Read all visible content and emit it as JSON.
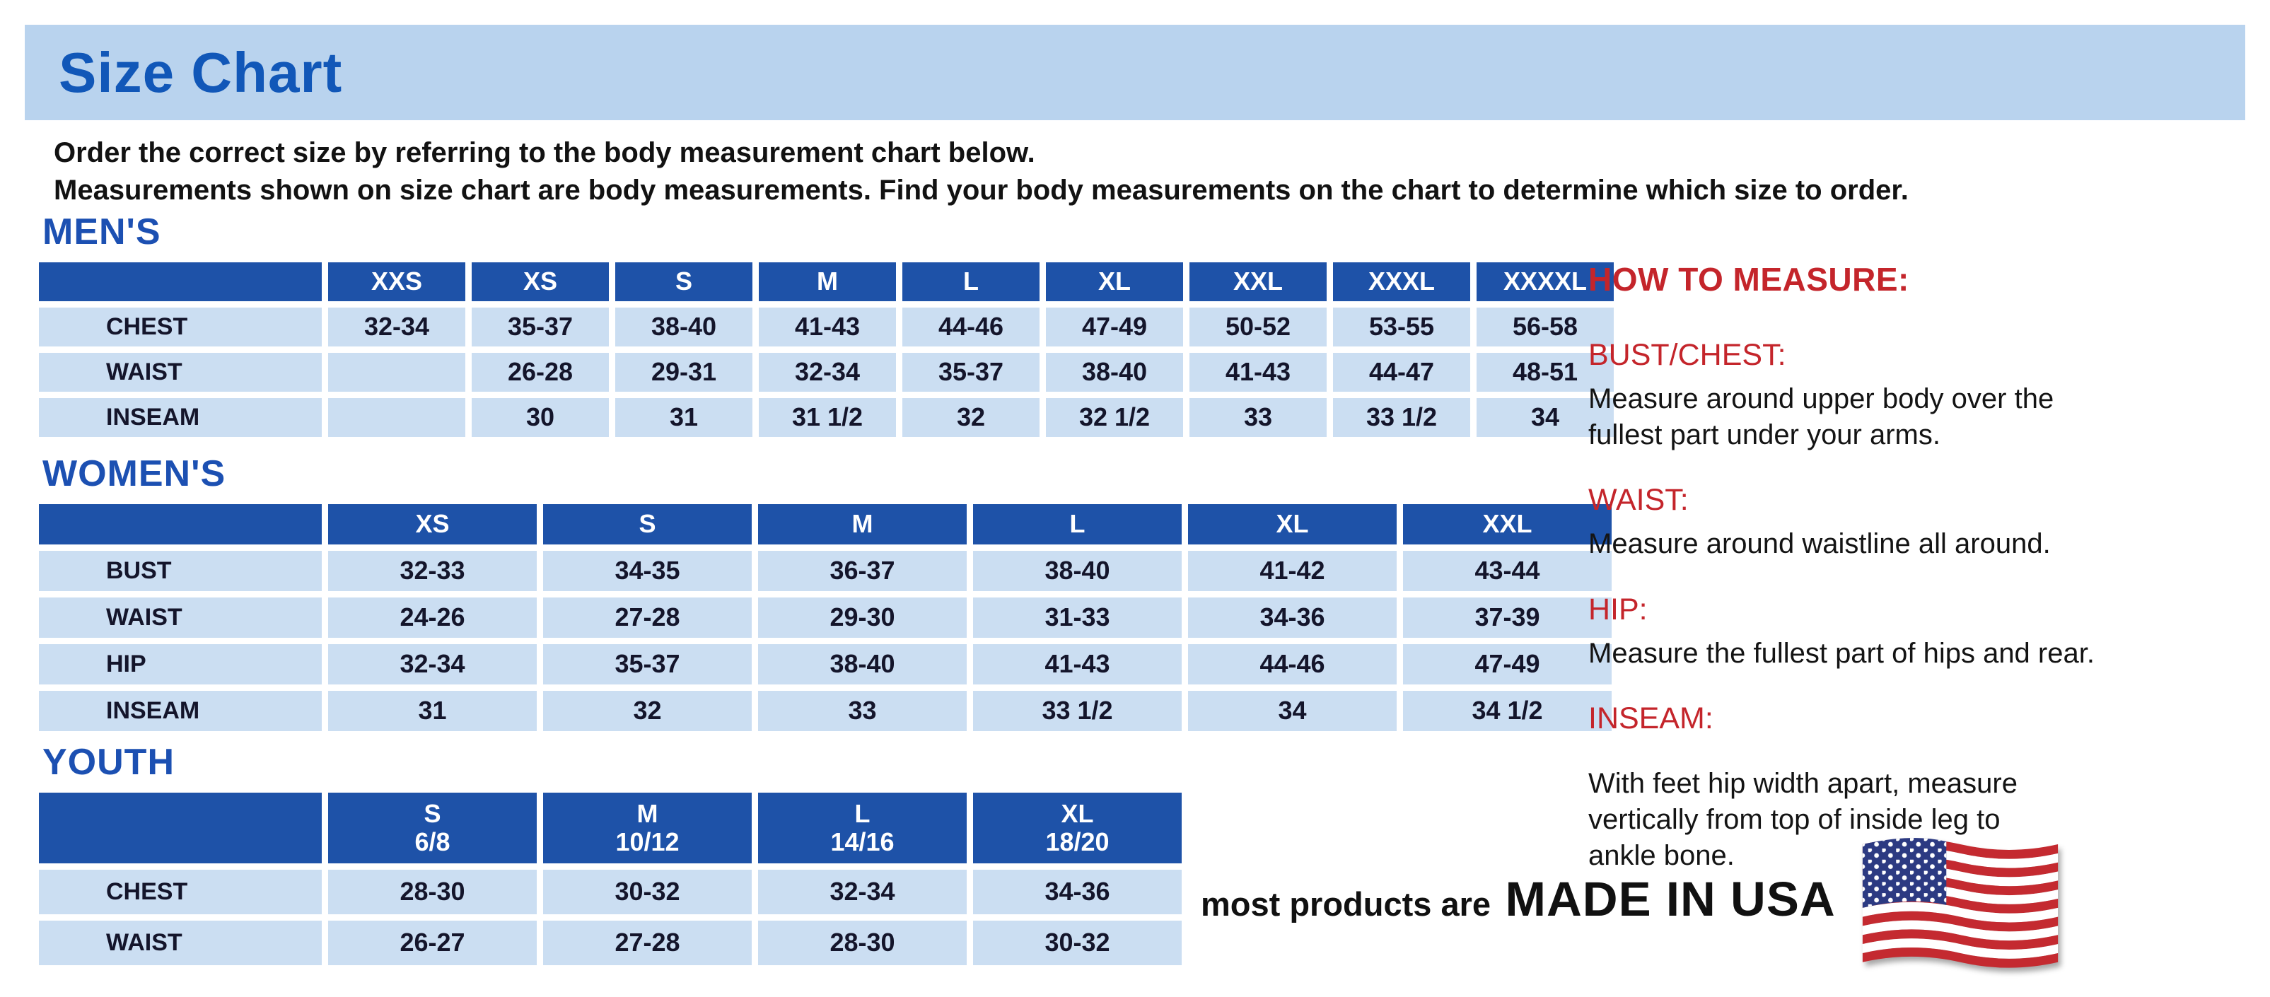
{
  "page": {
    "title": "Size Chart",
    "intro_line1": "Order the correct size by referring to the body measurement chart below.",
    "intro_line2": "Measurements shown on size chart are body measurements.  Find your body measurements on the chart to determine which size to order."
  },
  "colors": {
    "banner_blue": "#b9d3ee",
    "title_blue": "#1157b8",
    "heading_blue": "#1c50b2",
    "table_header_blue": "#1e52a8",
    "cell_light_blue": "#cbdef2",
    "accent_red": "#c4252b",
    "text_dark": "#14152b",
    "flag_red": "#c42a30",
    "flag_navy": "#2c3a82"
  },
  "tables": {
    "mens": {
      "section_label": "MEN'S",
      "headers": [
        "",
        "XXS",
        "XS",
        "S",
        "M",
        "L",
        "XL",
        "XXL",
        "XXXL",
        "XXXXL"
      ],
      "rows": [
        {
          "label": "CHEST",
          "values": [
            "32-34",
            "35-37",
            "38-40",
            "41-43",
            "44-46",
            "47-49",
            "50-52",
            "53-55",
            "56-58"
          ]
        },
        {
          "label": "WAIST",
          "values": [
            "",
            "26-28",
            "29-31",
            "32-34",
            "35-37",
            "38-40",
            "41-43",
            "44-47",
            "48-51"
          ]
        },
        {
          "label": "INSEAM",
          "values": [
            "",
            "30",
            "31",
            "31 1/2",
            "32",
            "32 1/2",
            "33",
            "33 1/2",
            "34"
          ]
        }
      ]
    },
    "womens": {
      "section_label": "WOMEN'S",
      "headers": [
        "",
        "XS",
        "S",
        "M",
        "L",
        "XL",
        "XXL"
      ],
      "rows": [
        {
          "label": "BUST",
          "values": [
            "32-33",
            "34-35",
            "36-37",
            "38-40",
            "41-42",
            "43-44"
          ]
        },
        {
          "label": "WAIST",
          "values": [
            "24-26",
            "27-28",
            "29-30",
            "31-33",
            "34-36",
            "37-39"
          ]
        },
        {
          "label": "HIP",
          "values": [
            "32-34",
            "35-37",
            "38-40",
            "41-43",
            "44-46",
            "47-49"
          ]
        },
        {
          "label": "INSEAM",
          "values": [
            "31",
            "32",
            "33",
            "33 1/2",
            "34",
            "34 1/2"
          ]
        }
      ]
    },
    "youth": {
      "section_label": "YOUTH",
      "headers": [
        "",
        "S\n6/8",
        "M\n10/12",
        "L\n14/16",
        "XL\n18/20"
      ],
      "rows": [
        {
          "label": "CHEST",
          "values": [
            "28-30",
            "30-32",
            "32-34",
            "34-36"
          ]
        },
        {
          "label": "WAIST",
          "values": [
            "26-27",
            "27-28",
            "28-30",
            "30-32"
          ]
        }
      ]
    }
  },
  "how_to_measure": {
    "title": "HOW TO MEASURE:",
    "items": [
      {
        "label": "BUST/CHEST:",
        "text": "Measure around upper body over the\nfullest part under your arms."
      },
      {
        "label": "WAIST:",
        "text": "Measure around waistline all around."
      },
      {
        "label": "HIP:",
        "text": "Measure the fullest part of hips and rear."
      },
      {
        "label": "INSEAM:",
        "text": "With feet hip width apart, measure\nvertically from top of inside leg to\nankle bone."
      }
    ]
  },
  "footer": {
    "prefix": "most products are",
    "made_in": "MADE IN USA",
    "flag_icon": "us-flag-icon"
  }
}
